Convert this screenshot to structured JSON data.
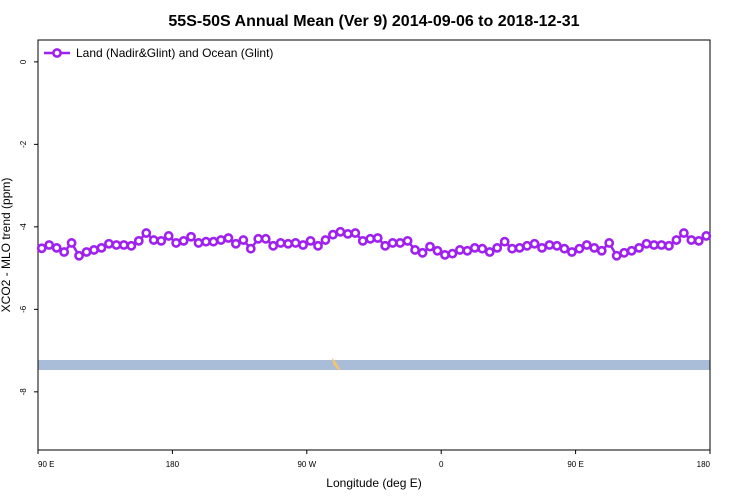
{
  "chart_data": {
    "type": "line",
    "title": "55S-50S Annual Mean (Ver 9)   2014-09-06 to 2018-12-31",
    "x_label": "Longitude (deg E)",
    "y_label": "XCO2 - MLO trend (ppm)",
    "xlim": [
      90,
      540
    ],
    "ylim": [
      -9.41,
      0.53
    ],
    "xticks": [
      {
        "value": 90,
        "label": "90 E"
      },
      {
        "value": 180,
        "label": "180"
      },
      {
        "value": 270,
        "label": "90 W"
      },
      {
        "value": 360,
        "label": "0"
      },
      {
        "value": 450,
        "label": "90 E"
      },
      {
        "value": 540,
        "label": "180"
      }
    ],
    "yticks": [
      0,
      -2,
      -4,
      -6,
      -8
    ],
    "legend": "top-left",
    "x": [
      92.5,
      97.5,
      102.5,
      107.5,
      112.5,
      117.5,
      122.5,
      127.5,
      132.5,
      137.5,
      142.5,
      147.5,
      152.5,
      157.5,
      162.5,
      167.5,
      172.5,
      177.5,
      182.5,
      187.5,
      192.5,
      197.5,
      202.5,
      207.5,
      212.5,
      217.5,
      222.5,
      227.5,
      232.5,
      237.5,
      242.5,
      247.5,
      252.5,
      257.5,
      262.5,
      267.5,
      272.5,
      277.5,
      282.5,
      287.5,
      292.5,
      297.5,
      302.5,
      307.5,
      312.5,
      317.5,
      322.5,
      327.5,
      332.5,
      337.5,
      342.5,
      347.5,
      352.5,
      357.5,
      362.5,
      367.5,
      372.5,
      377.5,
      382.5,
      387.5,
      392.5,
      397.5,
      402.5,
      407.5,
      412.5,
      417.5,
      422.5,
      427.5,
      432.5,
      437.5,
      442.5,
      447.5,
      452.5,
      457.5,
      462.5,
      467.5,
      472.5,
      477.5,
      482.5,
      487.5,
      492.5,
      497.5,
      502.5,
      507.5,
      512.5,
      517.5,
      522.5,
      527.5,
      532.5,
      537.5
    ],
    "series": [
      {
        "name": "Land (Nadir&Glint) and Ocean (Glint)",
        "color": "#a020f0",
        "values": [
          -4.52,
          -4.44,
          -4.51,
          -4.61,
          -4.39,
          -4.7,
          -4.61,
          -4.56,
          -4.51,
          -4.41,
          -4.44,
          -4.44,
          -4.46,
          -4.34,
          -4.15,
          -4.32,
          -4.34,
          -4.22,
          -4.39,
          -4.34,
          -4.24,
          -4.39,
          -4.36,
          -4.36,
          -4.32,
          -4.27,
          -4.41,
          -4.32,
          -4.53,
          -4.29,
          -4.29,
          -4.46,
          -4.39,
          -4.41,
          -4.39,
          -4.44,
          -4.34,
          -4.46,
          -4.32,
          -4.19,
          -4.12,
          -4.17,
          -4.15,
          -4.34,
          -4.29,
          -4.27,
          -4.46,
          -4.39,
          -4.39,
          -4.34,
          -4.56,
          -4.63,
          -4.48,
          -4.58,
          -4.68,
          -4.65,
          -4.56,
          -4.58,
          -4.51,
          -4.53,
          -4.61,
          -4.51,
          -4.36,
          -4.53,
          -4.51,
          -4.46,
          -4.41,
          -4.51,
          -4.44,
          -4.46,
          -4.53,
          -4.61,
          -4.53,
          -4.44,
          -4.51,
          -4.58,
          -4.39,
          -4.7,
          -4.63,
          -4.58,
          -4.51,
          -4.41,
          -4.44,
          -4.44,
          -4.46,
          -4.32,
          -4.15,
          -4.32,
          -4.34,
          -4.22
        ]
      }
    ]
  }
}
